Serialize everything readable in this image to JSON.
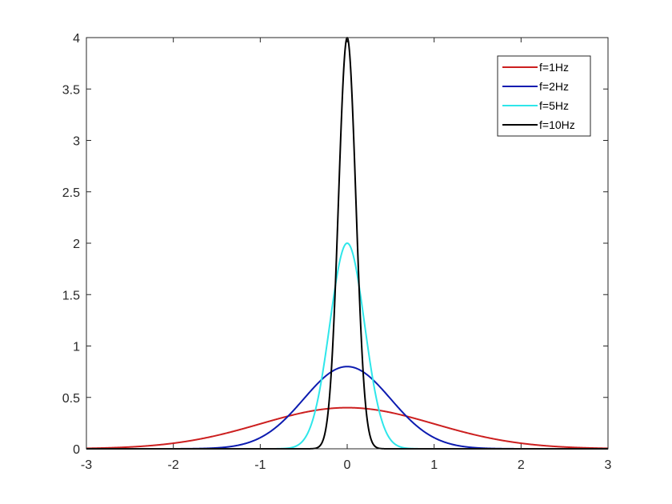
{
  "chart_data": {
    "type": "line",
    "xlim": [
      -3,
      3
    ],
    "ylim": [
      0,
      4
    ],
    "xticks": [
      -3,
      -2,
      -1,
      0,
      1,
      2,
      3
    ],
    "yticks": [
      0,
      0.5,
      1,
      1.5,
      2,
      2.5,
      3,
      3.5,
      4
    ],
    "xtick_labels": [
      "-3",
      "-2",
      "-1",
      "0",
      "1",
      "2",
      "3"
    ],
    "ytick_labels": [
      "0",
      "0.5",
      "1",
      "1.5",
      "2",
      "2.5",
      "3",
      "3.5",
      "4"
    ],
    "grid": false,
    "legend_position": "top-right",
    "series": [
      {
        "name": "f=1Hz",
        "color": "#cc1f1f",
        "mean": 0,
        "sigma": 1.0,
        "peak": 0.4
      },
      {
        "name": "f=2Hz",
        "color": "#0c1bb0",
        "mean": 0,
        "sigma": 0.5,
        "peak": 0.8
      },
      {
        "name": "f=5Hz",
        "color": "#2ee6ea",
        "mean": 0,
        "sigma": 0.2,
        "peak": 2.0
      },
      {
        "name": "f=10Hz",
        "color": "#000000",
        "mean": 0,
        "sigma": 0.1,
        "peak": 4.0
      }
    ]
  }
}
